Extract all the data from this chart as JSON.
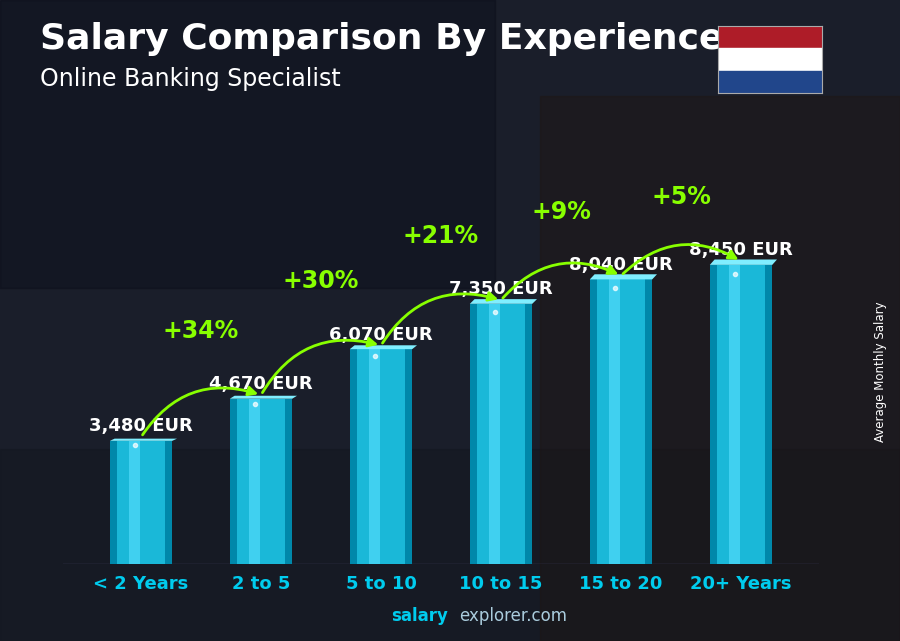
{
  "title": "Salary Comparison By Experience",
  "subtitle": "Online Banking Specialist",
  "categories": [
    "< 2 Years",
    "2 to 5",
    "5 to 10",
    "10 to 15",
    "15 to 20",
    "20+ Years"
  ],
  "values": [
    3480,
    4670,
    6070,
    7350,
    8040,
    8450
  ],
  "value_labels": [
    "3,480 EUR",
    "4,670 EUR",
    "6,070 EUR",
    "7,350 EUR",
    "8,040 EUR",
    "8,450 EUR"
  ],
  "pct_labels": [
    "+34%",
    "+30%",
    "+21%",
    "+9%",
    "+5%"
  ],
  "bar_color_main": "#1ab8d8",
  "bar_color_light": "#40d0f0",
  "bar_color_dark": "#0088aa",
  "bar_color_side": "#006688",
  "bg_color": "#1a1e2e",
  "text_color_white": "#ffffff",
  "text_color_green": "#88ff00",
  "title_fontsize": 26,
  "subtitle_fontsize": 17,
  "value_fontsize": 13,
  "pct_fontsize": 17,
  "ylabel_text": "Average Monthly Salary",
  "watermark_salary": "salary",
  "watermark_rest": "explorer.com",
  "ylim": [
    0,
    10500
  ],
  "flag_colors": [
    "#AE1C28",
    "#ffffff",
    "#21468B"
  ],
  "xtick_fontsize": 13,
  "bar_width": 0.52
}
